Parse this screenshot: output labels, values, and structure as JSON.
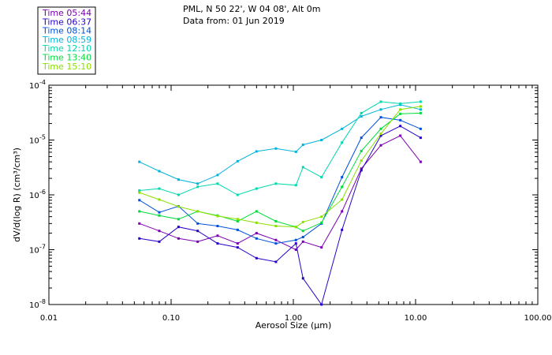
{
  "header": {
    "station": "PML, N 50 22', W 04 08', Alt 0m",
    "date": "Data from: 01 Jun 2019"
  },
  "legend": [
    {
      "label": "Time 05:44",
      "color": "#7b00b0"
    },
    {
      "label": "Time 06:37",
      "color": "#2a00c8"
    },
    {
      "label": "Time 08:14",
      "color": "#0050dc"
    },
    {
      "label": "Time 08:59",
      "color": "#00b4dc"
    },
    {
      "label": "Time 12:10",
      "color": "#00d8b0"
    },
    {
      "label": "Time 13:40",
      "color": "#00dc3c"
    },
    {
      "label": "Time 15:10",
      "color": "#8ce000"
    }
  ],
  "chart_data": {
    "type": "line",
    "xscale": "log",
    "yscale": "log",
    "xlim": [
      0.01,
      100
    ],
    "ylim": [
      1e-08,
      0.0001
    ],
    "xlabel": "Aerosol Size (µm)",
    "ylabel": "dV/d(log R) (cm³/cm³)",
    "x_ticks": [
      {
        "value": 0.01,
        "label": "0.01"
      },
      {
        "value": 0.1,
        "label": "0.10"
      },
      {
        "value": 1,
        "label": "1.00"
      },
      {
        "value": 10,
        "label": "10.00"
      },
      {
        "value": 100,
        "label": "100.00"
      }
    ],
    "y_ticks": [
      {
        "value": 1e-08,
        "base": "10",
        "exp": "-8"
      },
      {
        "value": 1e-07,
        "base": "10",
        "exp": "-7"
      },
      {
        "value": 1e-06,
        "base": "10",
        "exp": "-6"
      },
      {
        "value": 1e-05,
        "base": "10",
        "exp": "-5"
      },
      {
        "value": 0.0001,
        "base": "10",
        "exp": "-4"
      }
    ],
    "x": [
      0.055,
      0.08,
      0.115,
      0.165,
      0.24,
      0.35,
      0.5,
      0.72,
      1.05,
      1.2,
      1.7,
      2.5,
      3.6,
      5.2,
      7.5,
      11.0
    ],
    "series": [
      {
        "name": "Time 05:44",
        "color": "#7b00b0",
        "values": [
          3e-07,
          2.2e-07,
          1.6e-07,
          1.4e-07,
          1.8e-07,
          1.3e-07,
          2e-07,
          1.5e-07,
          1e-07,
          1.4e-07,
          1.1e-07,
          5e-07,
          3e-06,
          8e-06,
          1.2e-05,
          4e-06
        ]
      },
      {
        "name": "Time 06:37",
        "color": "#2a00c8",
        "values": [
          1.6e-07,
          1.4e-07,
          2.6e-07,
          2.2e-07,
          1.3e-07,
          1.1e-07,
          7e-08,
          6e-08,
          1.3e-07,
          3e-08,
          1e-08,
          2.3e-07,
          2.8e-06,
          1.2e-05,
          1.8e-05,
          1.1e-05
        ]
      },
      {
        "name": "Time 08:14",
        "color": "#0050dc",
        "values": [
          8e-07,
          4.8e-07,
          6.2e-07,
          3e-07,
          2.7e-07,
          2.3e-07,
          1.6e-07,
          1.3e-07,
          1.5e-07,
          1.7e-07,
          3e-07,
          2.1e-06,
          1.1e-05,
          2.6e-05,
          2.3e-05,
          1.6e-05
        ]
      },
      {
        "name": "Time 08:59",
        "color": "#00b4dc",
        "values": [
          4e-06,
          2.7e-06,
          1.9e-06,
          1.6e-06,
          2.3e-06,
          4.1e-06,
          6.2e-06,
          7e-06,
          6.1e-06,
          8.2e-06,
          1e-05,
          1.6e-05,
          2.7e-05,
          3.6e-05,
          4.4e-05,
          3.6e-05
        ]
      },
      {
        "name": "Time 12:10",
        "color": "#00d8b0",
        "values": [
          1.2e-06,
          1.3e-06,
          1e-06,
          1.4e-06,
          1.6e-06,
          1e-06,
          1.3e-06,
          1.6e-06,
          1.5e-06,
          3.2e-06,
          2.1e-06,
          9e-06,
          3.1e-05,
          5e-05,
          4.6e-05,
          5e-05
        ]
      },
      {
        "name": "Time 13:40",
        "color": "#00dc3c",
        "values": [
          5e-07,
          4.2e-07,
          3.6e-07,
          5e-07,
          4.2e-07,
          3.3e-07,
          5e-07,
          3.3e-07,
          2.6e-07,
          2.2e-07,
          3.1e-07,
          1.4e-06,
          6.3e-06,
          1.6e-05,
          3e-05,
          3.1e-05
        ]
      },
      {
        "name": "Time 15:10",
        "color": "#8ce000",
        "values": [
          1.1e-06,
          8.2e-07,
          6.1e-07,
          5e-07,
          4.1e-07,
          3.6e-07,
          3.1e-07,
          2.7e-07,
          2.6e-07,
          3.2e-07,
          4e-07,
          8.2e-07,
          4.2e-06,
          1.3e-05,
          3.6e-05,
          4.1e-05
        ]
      }
    ]
  }
}
